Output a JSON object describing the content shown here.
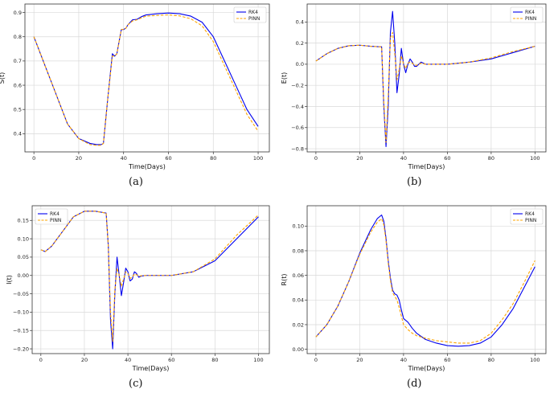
{
  "colors": {
    "rk4": "#0000ee",
    "pinn": "#ffa500",
    "grid": "#d9d9d9",
    "frame": "#333333"
  },
  "chart_data": [
    {
      "id": "a",
      "type": "line",
      "caption": "(a)",
      "xlabel": "Time(Days)",
      "ylabel": "S(t)",
      "xlim": [
        -4,
        105
      ],
      "ylim": [
        0.325,
        0.935
      ],
      "xticks": [
        0,
        20,
        40,
        60,
        80,
        100
      ],
      "xtick_labels": [
        "0",
        "20",
        "40",
        "60",
        "80",
        "100"
      ],
      "yticks": [
        0.4,
        0.5,
        0.6,
        0.7,
        0.8,
        0.9
      ],
      "ytick_labels": [
        "0.4",
        "0.5",
        "0.6",
        "0.7",
        "0.8",
        "0.9"
      ],
      "grid": true,
      "legend_position": "top-right",
      "series": [
        {
          "name": "RK4",
          "style": "solid",
          "color": "#0000ee",
          "x": [
            0,
            5,
            10,
            15,
            20,
            25,
            28,
            30,
            31,
            33,
            35,
            36,
            37,
            38,
            39,
            40,
            41,
            42,
            44,
            46,
            48,
            50,
            55,
            60,
            65,
            70,
            75,
            80,
            85,
            90,
            95,
            100
          ],
          "y": [
            0.8,
            0.68,
            0.56,
            0.44,
            0.38,
            0.36,
            0.355,
            0.355,
            0.36,
            0.55,
            0.73,
            0.72,
            0.73,
            0.78,
            0.83,
            0.83,
            0.835,
            0.85,
            0.87,
            0.872,
            0.883,
            0.89,
            0.895,
            0.898,
            0.895,
            0.885,
            0.86,
            0.8,
            0.7,
            0.6,
            0.5,
            0.43
          ]
        },
        {
          "name": "PINN",
          "style": "dashed",
          "color": "#ffa500",
          "x": [
            0,
            5,
            10,
            15,
            20,
            25,
            28,
            30,
            31,
            33,
            35,
            36,
            37,
            38,
            39,
            40,
            41,
            42,
            44,
            46,
            48,
            50,
            55,
            60,
            65,
            70,
            75,
            80,
            85,
            90,
            95,
            100
          ],
          "y": [
            0.8,
            0.68,
            0.56,
            0.44,
            0.38,
            0.355,
            0.352,
            0.352,
            0.36,
            0.55,
            0.72,
            0.72,
            0.73,
            0.78,
            0.83,
            0.83,
            0.835,
            0.85,
            0.865,
            0.87,
            0.878,
            0.885,
            0.888,
            0.89,
            0.886,
            0.874,
            0.845,
            0.78,
            0.68,
            0.58,
            0.48,
            0.41
          ]
        }
      ]
    },
    {
      "id": "b",
      "type": "line",
      "caption": "(b)",
      "xlabel": "Time(Days)",
      "ylabel": "E(t)",
      "xlim": [
        -4,
        105
      ],
      "ylim": [
        -0.83,
        0.57
      ],
      "xticks": [
        0,
        20,
        40,
        60,
        80,
        100
      ],
      "xtick_labels": [
        "0",
        "20",
        "40",
        "60",
        "80",
        "100"
      ],
      "yticks": [
        -0.8,
        -0.6,
        -0.4,
        -0.2,
        0.0,
        0.2,
        0.4
      ],
      "ytick_labels": [
        "−0.8",
        "−0.6",
        "−0.4",
        "−0.2",
        "0.0",
        "0.2",
        "0.4"
      ],
      "grid": true,
      "legend_position": "top-right",
      "series": [
        {
          "name": "RK4",
          "style": "solid",
          "color": "#0000ee",
          "x": [
            0,
            5,
            10,
            15,
            20,
            25,
            29,
            30,
            31,
            32,
            33,
            34,
            35,
            36,
            37,
            38,
            39,
            40,
            41,
            42,
            43,
            44,
            45,
            46,
            47,
            48,
            50,
            52,
            55,
            60,
            70,
            80,
            90,
            100
          ],
          "y": [
            0.03,
            0.1,
            0.15,
            0.175,
            0.18,
            0.17,
            0.165,
            0.165,
            -0.4,
            -0.78,
            -0.4,
            0.3,
            0.5,
            0.2,
            -0.27,
            -0.1,
            0.15,
            0.0,
            -0.08,
            0.0,
            0.05,
            0.02,
            -0.02,
            -0.02,
            0.0,
            0.02,
            0.0,
            0.0,
            0.0,
            0.0,
            0.02,
            0.05,
            0.11,
            0.17
          ]
        },
        {
          "name": "PINN",
          "style": "dashed",
          "color": "#ffa500",
          "x": [
            0,
            5,
            10,
            15,
            20,
            25,
            29,
            30,
            31,
            32,
            33,
            34,
            35,
            36,
            37,
            38,
            39,
            40,
            41,
            42,
            43,
            44,
            45,
            46,
            47,
            48,
            50,
            52,
            55,
            60,
            70,
            80,
            90,
            100
          ],
          "y": [
            0.03,
            0.1,
            0.15,
            0.175,
            0.18,
            0.17,
            0.165,
            0.165,
            -0.35,
            -0.74,
            -0.3,
            0.25,
            0.3,
            0.1,
            -0.15,
            -0.05,
            0.08,
            0.0,
            -0.04,
            0.01,
            0.02,
            0.01,
            -0.01,
            -0.01,
            0.0,
            0.01,
            0.0,
            0.0,
            0.0,
            0.0,
            0.02,
            0.06,
            0.12,
            0.17
          ]
        }
      ]
    },
    {
      "id": "c",
      "type": "line",
      "caption": "(c)",
      "xlabel": "Time(Days)",
      "ylabel": "I(t)",
      "xlim": [
        -4,
        105
      ],
      "ylim": [
        -0.213,
        0.19
      ],
      "xticks": [
        0,
        20,
        40,
        60,
        80,
        100
      ],
      "xtick_labels": [
        "0",
        "20",
        "40",
        "60",
        "80",
        "100"
      ],
      "yticks": [
        -0.2,
        -0.15,
        -0.1,
        -0.05,
        0.0,
        0.05,
        0.1,
        0.15
      ],
      "ytick_labels": [
        "−0.20",
        "−0.15",
        "−0.10",
        "−0.05",
        "0.00",
        "0.05",
        "0.10",
        "0.15"
      ],
      "grid": true,
      "legend_position": "top-left",
      "series": [
        {
          "name": "RK4",
          "style": "solid",
          "color": "#0000ee",
          "x": [
            0,
            2,
            5,
            10,
            15,
            20,
            25,
            30,
            31,
            32,
            33,
            34,
            35,
            36,
            37,
            38,
            39,
            40,
            41,
            42,
            43,
            44,
            45,
            46,
            48,
            50,
            55,
            60,
            70,
            80,
            90,
            100
          ],
          "y": [
            0.07,
            0.065,
            0.08,
            0.12,
            0.16,
            0.175,
            0.175,
            0.17,
            0.08,
            -0.12,
            -0.2,
            -0.05,
            0.05,
            0.0,
            -0.055,
            -0.02,
            0.02,
            0.01,
            -0.015,
            -0.01,
            0.01,
            0.005,
            -0.005,
            -0.002,
            0.0,
            0.0,
            0.0,
            0.0,
            0.01,
            0.04,
            0.1,
            0.16
          ]
        },
        {
          "name": "PINN",
          "style": "dashed",
          "color": "#ffa500",
          "x": [
            0,
            2,
            5,
            10,
            15,
            20,
            25,
            30,
            31,
            32,
            33,
            34,
            35,
            36,
            37,
            38,
            39,
            40,
            41,
            42,
            43,
            44,
            45,
            46,
            48,
            50,
            55,
            60,
            70,
            80,
            90,
            100
          ],
          "y": [
            0.07,
            0.065,
            0.08,
            0.12,
            0.16,
            0.175,
            0.175,
            0.17,
            0.08,
            -0.1,
            -0.18,
            -0.04,
            0.02,
            0.0,
            -0.03,
            -0.01,
            0.01,
            0.005,
            -0.008,
            -0.005,
            0.004,
            0.002,
            -0.002,
            -0.001,
            0.0,
            0.0,
            0.0,
            0.0,
            0.01,
            0.045,
            0.11,
            0.165
          ]
        }
      ]
    },
    {
      "id": "d",
      "type": "line",
      "caption": "(d)",
      "xlabel": "Time(Days)",
      "ylabel": "R(t)",
      "xlim": [
        -4,
        105
      ],
      "ylim": [
        -0.0035,
        0.1165
      ],
      "xticks": [
        0,
        20,
        40,
        60,
        80,
        100
      ],
      "xtick_labels": [
        "0",
        "20",
        "40",
        "60",
        "80",
        "100"
      ],
      "yticks": [
        0.0,
        0.02,
        0.04,
        0.06,
        0.08,
        0.1
      ],
      "ytick_labels": [
        "0.00",
        "0.02",
        "0.04",
        "0.06",
        "0.08",
        "0.10"
      ],
      "grid": true,
      "legend_position": "top-right",
      "series": [
        {
          "name": "RK4",
          "style": "solid",
          "color": "#0000ee",
          "x": [
            0,
            5,
            10,
            15,
            20,
            25,
            28,
            30,
            31,
            32,
            33,
            34,
            35,
            36,
            37,
            38,
            39,
            40,
            42,
            44,
            46,
            50,
            55,
            60,
            65,
            70,
            75,
            80,
            85,
            90,
            95,
            100
          ],
          "y": [
            0.01,
            0.02,
            0.035,
            0.055,
            0.078,
            0.097,
            0.106,
            0.109,
            0.104,
            0.09,
            0.072,
            0.058,
            0.048,
            0.045,
            0.044,
            0.04,
            0.032,
            0.025,
            0.022,
            0.017,
            0.013,
            0.008,
            0.005,
            0.003,
            0.0025,
            0.003,
            0.005,
            0.01,
            0.02,
            0.033,
            0.05,
            0.067
          ]
        },
        {
          "name": "PINN",
          "style": "dashed",
          "color": "#ffa500",
          "x": [
            0,
            5,
            10,
            15,
            20,
            25,
            28,
            30,
            31,
            32,
            33,
            34,
            35,
            36,
            37,
            38,
            39,
            40,
            42,
            44,
            46,
            50,
            55,
            60,
            65,
            70,
            75,
            80,
            85,
            90,
            95,
            100
          ],
          "y": [
            0.01,
            0.02,
            0.035,
            0.055,
            0.077,
            0.095,
            0.103,
            0.106,
            0.101,
            0.088,
            0.07,
            0.056,
            0.046,
            0.043,
            0.04,
            0.034,
            0.027,
            0.02,
            0.016,
            0.013,
            0.011,
            0.009,
            0.007,
            0.006,
            0.005,
            0.005,
            0.007,
            0.013,
            0.024,
            0.037,
            0.054,
            0.072
          ]
        }
      ]
    }
  ]
}
